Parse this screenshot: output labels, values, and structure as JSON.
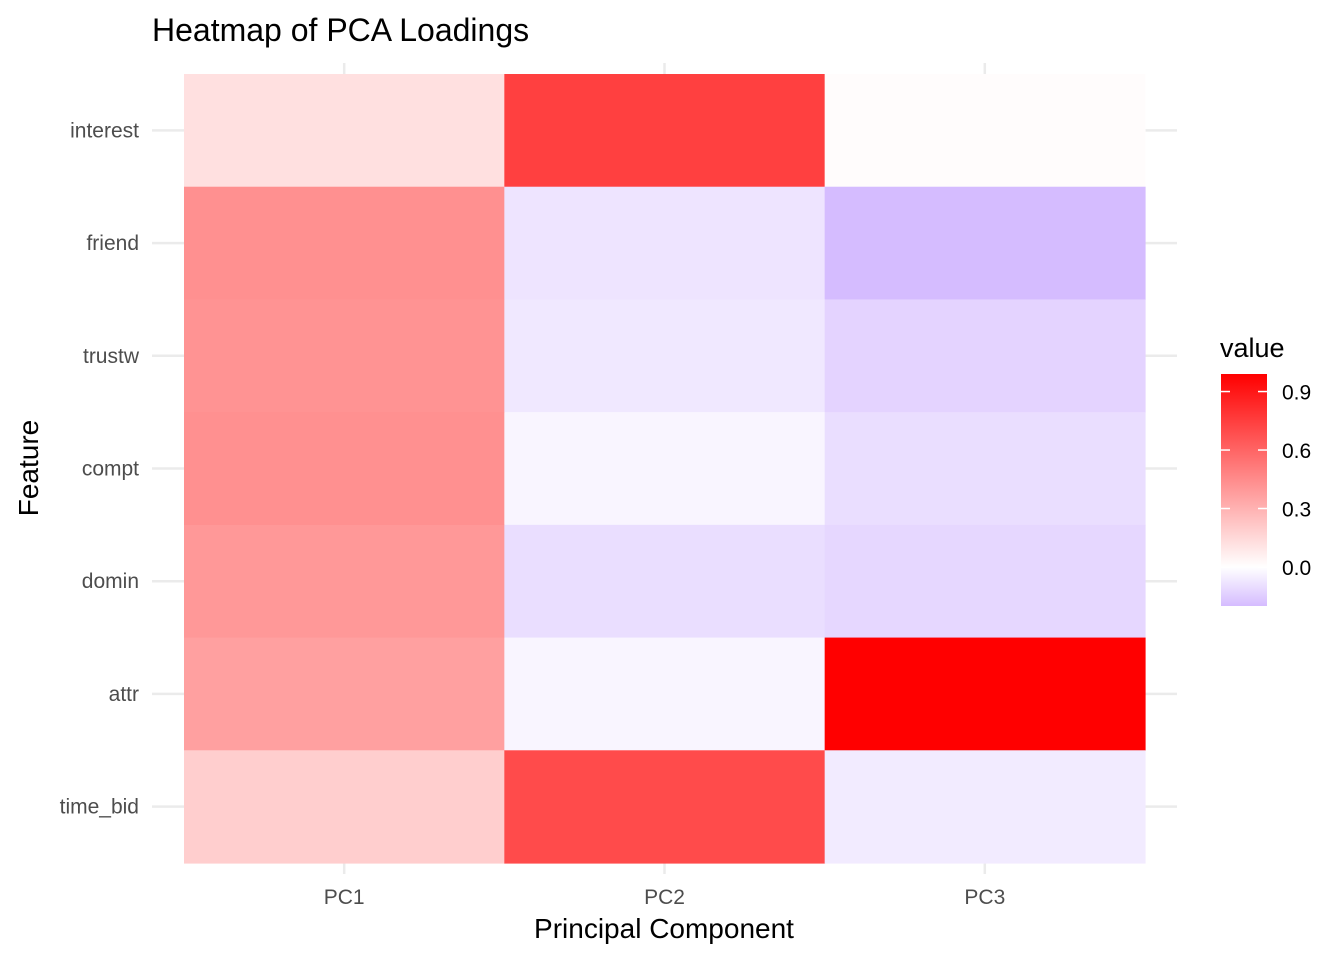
{
  "chart_data": {
    "type": "heatmap",
    "title": "Heatmap of PCA Loadings",
    "xlabel": "Principal Component",
    "ylabel": "Feature",
    "x_categories": [
      "PC1",
      "PC2",
      "PC3"
    ],
    "y_categories": [
      "interest",
      "friend",
      "trustw",
      "compt",
      "domin",
      "attr",
      "time_bid"
    ],
    "values": [
      [
        0.12,
        0.74,
        0.01
      ],
      [
        0.43,
        -0.08,
        -0.2
      ],
      [
        0.42,
        -0.07,
        -0.13
      ],
      [
        0.43,
        -0.03,
        -0.1
      ],
      [
        0.4,
        -0.1,
        -0.12
      ],
      [
        0.37,
        -0.03,
        0.99
      ],
      [
        0.19,
        0.7,
        -0.06
      ]
    ],
    "legend": {
      "title": "value",
      "ticks": [
        "0.9",
        "0.6",
        "0.3",
        "0.0"
      ],
      "tick_values": [
        0.9,
        0.6,
        0.3,
        0.0
      ],
      "range": [
        -0.2,
        0.99
      ],
      "placement": "right"
    },
    "colors": {
      "low": "#d5bcff",
      "mid": "#ffffff",
      "high": "#ff0000"
    },
    "grid": true
  }
}
